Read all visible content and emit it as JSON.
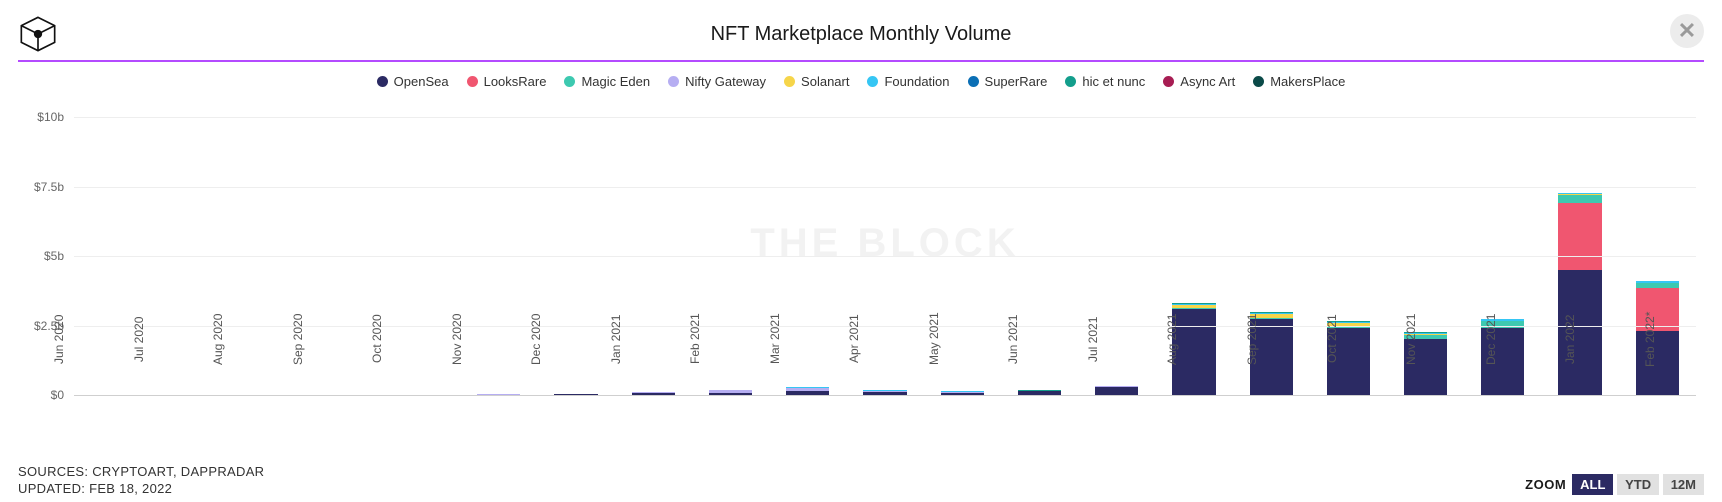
{
  "header": {
    "title": "NFT Marketplace Monthly Volume"
  },
  "divider_color": "#b44bff",
  "watermark": "THE BLOCK",
  "legend": [
    {
      "name": "OpenSea",
      "color": "#2b2a63"
    },
    {
      "name": "LooksRare",
      "color": "#f05670"
    },
    {
      "name": "Magic Eden",
      "color": "#3dc9b0"
    },
    {
      "name": "Nifty Gateway",
      "color": "#b6aef2"
    },
    {
      "name": "Solanart",
      "color": "#f6d54a"
    },
    {
      "name": "Foundation",
      "color": "#35c6f4"
    },
    {
      "name": "SuperRare",
      "color": "#0b6fb5"
    },
    {
      "name": "hic et nunc",
      "color": "#139e8c"
    },
    {
      "name": "Async Art",
      "color": "#a71d53"
    },
    {
      "name": "MakersPlace",
      "color": "#0b4a48"
    }
  ],
  "chart": {
    "type": "stacked-bar",
    "background_color": "#ffffff",
    "grid_color": "#eeeeee",
    "axis_color": "#cfcfcf",
    "ylim": [
      0,
      10.8
    ],
    "ytick_step": 2.5,
    "yticks": [
      {
        "pos": 0,
        "label": "$0"
      },
      {
        "pos": 2.5,
        "label": "$2.5b"
      },
      {
        "pos": 5,
        "label": "$5b"
      },
      {
        "pos": 7.5,
        "label": "$7.5b"
      },
      {
        "pos": 10,
        "label": "$10b"
      }
    ],
    "categories": [
      "Jun 2020",
      "Jul 2020",
      "Aug 2020",
      "Sep 2020",
      "Oct 2020",
      "Nov 2020",
      "Dec 2020",
      "Jan 2021",
      "Feb 2021",
      "Mar 2021",
      "Apr 2021",
      "May 2021",
      "Jun 2021",
      "Jul 2021",
      "Aug 2021",
      "Sep 2021",
      "Oct 2021",
      "Nov 2021",
      "Dec 2021",
      "Jan 2022",
      "Feb 2022*"
    ],
    "series_order": [
      "OpenSea",
      "LooksRare",
      "Magic Eden",
      "Nifty Gateway",
      "Solanart",
      "Foundation",
      "SuperRare",
      "hic et nunc",
      "Async Art",
      "MakersPlace"
    ],
    "data": [
      {
        "OpenSea": 0.005
      },
      {
        "OpenSea": 0.006
      },
      {
        "OpenSea": 0.007
      },
      {
        "OpenSea": 0.01,
        "Nifty Gateway": 0.005
      },
      {
        "OpenSea": 0.012,
        "Nifty Gateway": 0.006
      },
      {
        "OpenSea": 0.015,
        "Nifty Gateway": 0.007
      },
      {
        "OpenSea": 0.02,
        "Nifty Gateway": 0.01
      },
      {
        "OpenSea": 0.08,
        "Nifty Gateway": 0.02
      },
      {
        "OpenSea": 0.09,
        "Nifty Gateway": 0.08,
        "Foundation": 0.01
      },
      {
        "OpenSea": 0.14,
        "Nifty Gateway": 0.12,
        "Foundation": 0.015,
        "SuperRare": 0.01
      },
      {
        "OpenSea": 0.095,
        "Nifty Gateway": 0.06,
        "Foundation": 0.012,
        "SuperRare": 0.01,
        "hic et nunc": 0.01
      },
      {
        "OpenSea": 0.09,
        "Nifty Gateway": 0.03,
        "Foundation": 0.01,
        "hic et nunc": 0.012
      },
      {
        "OpenSea": 0.13,
        "Nifty Gateway": 0.02,
        "Foundation": 0.01,
        "hic et nunc": 0.01
      },
      {
        "OpenSea": 0.3,
        "Nifty Gateway": 0.02,
        "Foundation": 0.01,
        "hic et nunc": 0.01
      },
      {
        "OpenSea": 3.1,
        "Solanart": 0.1,
        "Foundation": 0.04,
        "Magic Eden": 0.03,
        "hic et nunc": 0.03,
        "SuperRare": 0.02
      },
      {
        "OpenSea": 2.75,
        "Solanart": 0.12,
        "Foundation": 0.04,
        "Magic Eden": 0.04,
        "hic et nunc": 0.03
      },
      {
        "OpenSea": 2.4,
        "Solanart": 0.1,
        "Magic Eden": 0.08,
        "Foundation": 0.04,
        "hic et nunc": 0.03
      },
      {
        "OpenSea": 2.0,
        "Magic Eden": 0.15,
        "Solanart": 0.05,
        "Foundation": 0.05,
        "hic et nunc": 0.03
      },
      {
        "OpenSea": 2.4,
        "Magic Eden": 0.25,
        "Foundation": 0.05,
        "Solanart": 0.03,
        "hic et nunc": 0.02
      },
      {
        "OpenSea": 4.5,
        "LooksRare": 2.4,
        "Magic Eden": 0.3,
        "Foundation": 0.05,
        "Solanart": 0.03
      },
      {
        "OpenSea": 2.3,
        "LooksRare": 1.55,
        "Magic Eden": 0.2,
        "Foundation": 0.04
      }
    ],
    "bar_width_ratio": 0.56,
    "label_fontsize": 12
  },
  "footer": {
    "sources_label": "SOURCES: CRYPTOART, DAPPRADAR",
    "updated_label": "UPDATED: FEB 18, 2022"
  },
  "zoom": {
    "label": "ZOOM",
    "options": [
      "ALL",
      "YTD",
      "12M"
    ],
    "active": "ALL",
    "blanks": 2
  }
}
